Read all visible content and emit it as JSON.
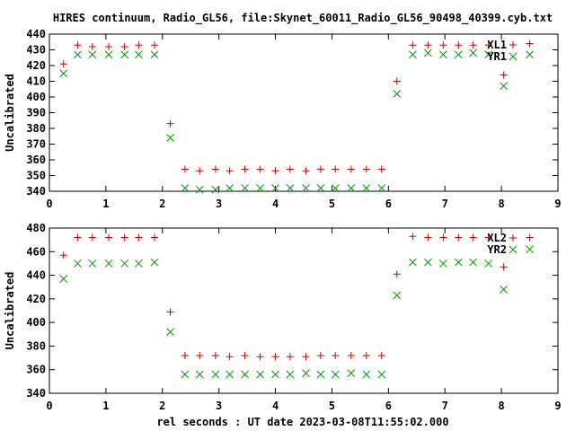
{
  "chart_data": {
    "title": "HIRES continuum, Radio_GL56, file:Skynet_60011_Radio_GL56_90498_40399.cyb.txt",
    "xlabel": "rel seconds : UT date 2023-03-08T11:55:02.000",
    "colors": {
      "XL": "#cc0000",
      "YR": "#009900"
    },
    "panels": [
      {
        "type": "scatter",
        "ylabel": "Uncalibrated",
        "xlim": [
          0,
          9
        ],
        "ylim": [
          340,
          440
        ],
        "xticks": [
          0,
          1,
          2,
          3,
          4,
          5,
          6,
          7,
          8,
          9
        ],
        "yticks": [
          340,
          350,
          360,
          370,
          380,
          390,
          400,
          410,
          420,
          430,
          440
        ],
        "series": [
          {
            "name": "XL1",
            "marker": "plus",
            "x": [
              0.25,
              0.5,
              0.76,
              1.05,
              1.33,
              1.58,
              1.86,
              2.14,
              2.4,
              2.66,
              2.94,
              3.19,
              3.46,
              3.73,
              4.0,
              4.26,
              4.54,
              4.8,
              5.06,
              5.34,
              5.61,
              5.88,
              6.15,
              6.43,
              6.7,
              6.97,
              7.24,
              7.5,
              7.77,
              8.04,
              8.5
            ],
            "y": [
              421,
              433,
              432,
              432,
              432,
              433,
              433,
              383,
              354,
              353,
              354,
              353,
              354,
              354,
              353,
              354,
              353,
              354,
              354,
              354,
              354,
              354,
              410,
              433,
              433,
              433,
              433,
              433,
              433,
              414,
              434
            ]
          },
          {
            "name": "YR1",
            "marker": "cross",
            "x": [
              0.25,
              0.5,
              0.76,
              1.05,
              1.33,
              1.58,
              1.86,
              2.14,
              2.4,
              2.66,
              2.94,
              3.19,
              3.46,
              3.73,
              4.0,
              4.26,
              4.54,
              4.8,
              5.06,
              5.34,
              5.61,
              5.88,
              6.15,
              6.43,
              6.7,
              6.97,
              7.24,
              7.5,
              7.77,
              8.04,
              8.5
            ],
            "y": [
              415,
              427,
              427,
              427,
              427,
              427,
              427,
              374,
              342,
              341,
              341,
              342,
              342,
              342,
              342,
              342,
              342,
              342,
              342,
              342,
              342,
              342,
              402,
              427,
              428,
              427,
              427,
              428,
              427,
              407,
              427
            ]
          }
        ]
      },
      {
        "type": "scatter",
        "ylabel": "Uncalibrated",
        "xlim": [
          0,
          9
        ],
        "ylim": [
          340,
          480
        ],
        "xticks": [
          0,
          1,
          2,
          3,
          4,
          5,
          6,
          7,
          8,
          9
        ],
        "yticks": [
          340,
          360,
          380,
          400,
          420,
          440,
          460,
          480
        ],
        "series": [
          {
            "name": "XL2",
            "marker": "plus",
            "x": [
              0.25,
              0.5,
              0.76,
              1.05,
              1.33,
              1.58,
              1.86,
              2.14,
              2.4,
              2.66,
              2.94,
              3.19,
              3.46,
              3.73,
              4.0,
              4.26,
              4.54,
              4.8,
              5.06,
              5.34,
              5.61,
              5.88,
              6.15,
              6.43,
              6.7,
              6.97,
              7.24,
              7.5,
              7.77,
              8.04,
              8.5
            ],
            "y": [
              457,
              472,
              472,
              472,
              472,
              472,
              472,
              409,
              372,
              372,
              372,
              371,
              372,
              371,
              371,
              371,
              371,
              372,
              372,
              372,
              372,
              372,
              441,
              473,
              472,
              472,
              472,
              472,
              472,
              447,
              472
            ]
          },
          {
            "name": "YR2",
            "marker": "cross",
            "x": [
              0.25,
              0.5,
              0.76,
              1.05,
              1.33,
              1.58,
              1.86,
              2.14,
              2.4,
              2.66,
              2.94,
              3.19,
              3.46,
              3.73,
              4.0,
              4.26,
              4.54,
              4.8,
              5.06,
              5.34,
              5.61,
              5.88,
              6.15,
              6.43,
              6.7,
              6.97,
              7.24,
              7.5,
              7.77,
              8.04,
              8.5
            ],
            "y": [
              437,
              450,
              450,
              450,
              450,
              450,
              451,
              392,
              356,
              356,
              356,
              356,
              356,
              356,
              356,
              356,
              357,
              356,
              356,
              357,
              356,
              356,
              423,
              451,
              451,
              450,
              451,
              451,
              450,
              428,
              462
            ]
          }
        ]
      }
    ]
  }
}
